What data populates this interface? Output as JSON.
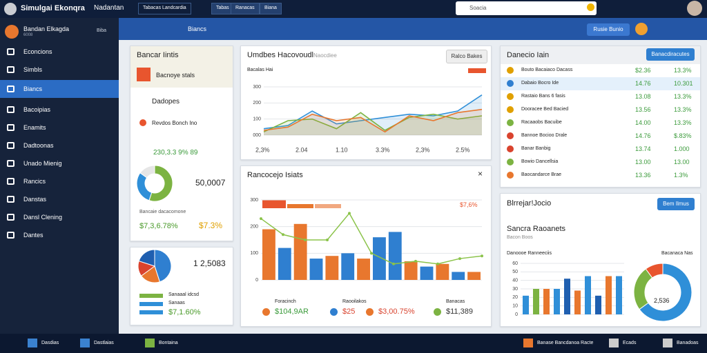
{
  "topbar": {
    "title": "Simulgai Ekonqra",
    "subtitle": "Nadantan",
    "tabs": [
      "Tabacas Landcardia",
      "Tabas",
      "Ranacas",
      "Biana"
    ],
    "search": "Soacia"
  },
  "sidebar": {
    "user": "Bandan Elkagda",
    "user_sub": "6008",
    "action": "Biba",
    "items": [
      "Econcions",
      "Simbls",
      "Biancs",
      "Bacoipias",
      "Enamits",
      "Dadtoonas",
      "Unado Mienig",
      "Rancics",
      "Danstas",
      "Dansl Clening",
      "Dantes"
    ]
  },
  "toolbar": {
    "breadcrumb": "Biancs",
    "button": "Rusie Bunio"
  },
  "left_card": {
    "title": "Bancar Iintis",
    "alert": "Bacnoye stals",
    "section": "Dadopes",
    "item": "Revdos Bonch Ino",
    "stat": "230,3.3 9% 89",
    "donut_value": "50,0007",
    "donut": [
      55,
      30,
      15
    ],
    "footer_label": "Bancaie dacacomone",
    "footer_stats": [
      "$7,3,6.78%",
      "$7.3%"
    ]
  },
  "left_card2": {
    "pie_value": "1 2,5083",
    "pie": [
      45,
      20,
      15,
      20
    ],
    "legend": [
      "Sanaaal idcsd",
      "Sanaas",
      "$7,1.60%"
    ]
  },
  "line_card": {
    "title": "Umdbes Hacovoudl",
    "subtitle": "Naocdiee",
    "button": "Ralco Bakes",
    "label": "Bacalas Hai",
    "ylim": [
      0,
      300
    ],
    "yticks": [
      300,
      200,
      100,
      {
        "value": 0,
        "label": "000"
      }
    ],
    "series": [
      {
        "color": "#2f8fd8",
        "values": [
          40,
          60,
          150,
          70,
          90,
          110,
          130,
          120,
          150,
          250
        ]
      },
      {
        "color": "#7cb342",
        "values": [
          20,
          90,
          100,
          40,
          140,
          30,
          110,
          130,
          100,
          120
        ]
      },
      {
        "color": "#e8772e",
        "values": [
          30,
          50,
          130,
          90,
          110,
          20,
          120,
          90,
          140,
          160
        ]
      }
    ],
    "stats": [
      "2,3%",
      "2.04",
      "1.10",
      "3.3%",
      "2,3%",
      "2.5%"
    ]
  },
  "bar_card": {
    "title": "Rancocejo Isiats",
    "label": "$7,6%",
    "ylim": [
      0,
      300
    ],
    "yticks": [
      0,
      100,
      200,
      300
    ],
    "bars": {
      "values": [
        190,
        120,
        210,
        80,
        90,
        100,
        80,
        160,
        180,
        70,
        50,
        60,
        30,
        30
      ],
      "colors": [
        "#e8772e",
        "#2f7fd0",
        "#e8772e",
        "#2f7fd0",
        "#e8772e",
        "#2f7fd0",
        "#e8772e",
        "#2f7fd0",
        "#2f7fd0",
        "#e8772e",
        "#2f7fd0",
        "#e8772e",
        "#2f7fd0",
        "#e8772e"
      ]
    },
    "line": {
      "color": "#8bc34a",
      "values": [
        230,
        170,
        150,
        150,
        250,
        100,
        60,
        70,
        60,
        80,
        90
      ]
    },
    "footer": [
      {
        "label": "Foracinch",
        "value": "$104,9AR"
      },
      {
        "label": "Raooilakos",
        "value": "$25"
      },
      {
        "value": "$3,00.75%"
      },
      {
        "label": "Banacas",
        "value": "$11,389"
      }
    ]
  },
  "table_card": {
    "title": "Danecio Iain",
    "button": "Banacdiracutes",
    "rows": [
      [
        "Bouto Bacaiaco Dacass",
        "$2.36",
        "13.3%"
      ],
      [
        "Dabaio Bocro Ide",
        "14.76",
        "10.301"
      ],
      [
        "Rastaio Bans 6 fasis",
        "13.08",
        "13.3%"
      ],
      [
        "Dooracee Bed Bacied",
        "13.56",
        "13.3%"
      ],
      [
        "Racaaobs Bacuibe",
        "14.00",
        "13.3%"
      ],
      [
        "Bannoe Bocioo Drale",
        "14.76",
        "$.83%"
      ],
      [
        "Banar Banbig",
        "13.74",
        "1.000"
      ],
      [
        "Bowio Dancellsia",
        "13.00",
        "13.00"
      ],
      [
        "Baocandarce Brae",
        "13.36",
        "1.3%"
      ]
    ]
  },
  "summary_card": {
    "title": "Blrrejar!Jocio",
    "button": "Bem Ilmus",
    "heading": "Sancra Raoanets",
    "sub": "Bacon Boos",
    "chart_label": "Danoooe Ranneeciis",
    "chart_label2": "Bacanaca Nas",
    "ylim": [
      0,
      60
    ],
    "yticks": [
      0,
      10,
      20,
      30,
      40,
      50,
      60
    ],
    "bars": {
      "values": [
        22,
        30,
        30,
        30,
        42,
        28,
        45,
        22,
        45,
        45
      ],
      "colors": [
        "#2f8fd8",
        "#7cb342",
        "#e8772e",
        "#2f8fd8",
        "#1f5fb0",
        "#e8772e",
        "#2f8fd8",
        "#1f5fb0",
        "#e8772e",
        "#2f8fd8"
      ]
    },
    "donut": [
      65,
      25,
      10
    ],
    "donut_value": "2,536"
  },
  "taskbar": {
    "items": [
      "Dasdias",
      "Dastlaias",
      "Bontaina",
      "Banase Bancdanoa Racte",
      "Ecads",
      "Banadoas"
    ]
  }
}
